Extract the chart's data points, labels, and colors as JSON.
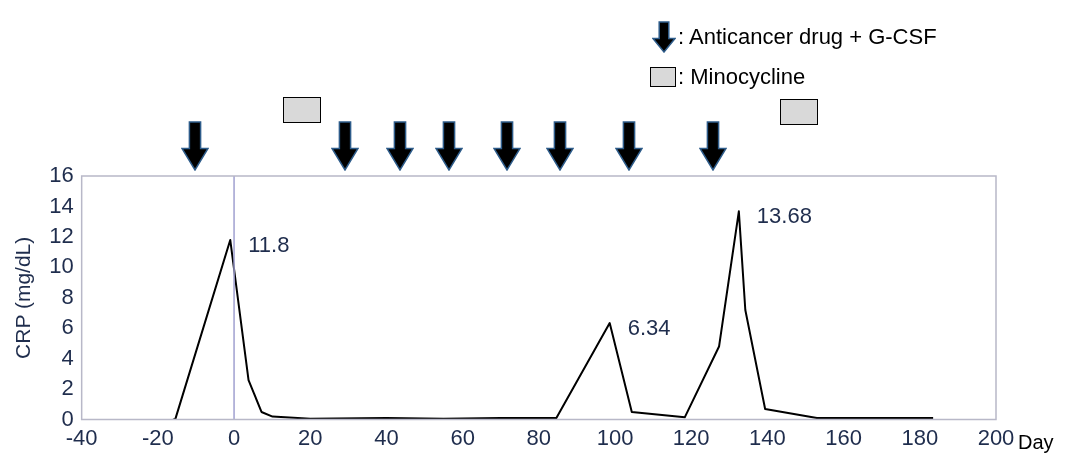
{
  "chart_data": {
    "type": "line",
    "ylabel": "CRP (mg/dL)",
    "xlabel": "Day",
    "x": [
      -16,
      -15.4,
      -1,
      3.8,
      7.2,
      10.1,
      20,
      40,
      55,
      70,
      84.6,
      98.6,
      104.4,
      118.3,
      127.3,
      132.5,
      134.2,
      139.4,
      153,
      183.5
    ],
    "series": [
      {
        "color": "#000000",
        "values": [
          0,
          0.05,
          11.8,
          2.6,
          0.5,
          0.2,
          0.05,
          0.1,
          0.05,
          0.1,
          0.1,
          6.34,
          0.5,
          0.15,
          4.8,
          13.68,
          7.2,
          0.7,
          0.1,
          0.1
        ]
      }
    ],
    "xlim": [
      -40,
      200
    ],
    "xticks": [
      -40,
      -20,
      0,
      20,
      40,
      60,
      80,
      100,
      120,
      140,
      160,
      180,
      200
    ],
    "ylim": [
      0,
      16
    ],
    "yticks": [
      0,
      2,
      4,
      6,
      8,
      10,
      12,
      14,
      16
    ],
    "grid": false,
    "legend": false,
    "marker": "none",
    "line_style": "solid",
    "ref_lines": [
      {
        "axis": "x",
        "value": 0,
        "color": "#a0a0d0"
      }
    ],
    "annotations": [
      ": Anticancer drug + G-CSF",
      ": Minocycline",
      {
        "text": "11.8",
        "x": -1,
        "y": 11.8
      },
      {
        "text": "6.34",
        "x": 98.6,
        "y": 6.34
      },
      {
        "text": "13.68",
        "x": 132.5,
        "y": 13.68
      }
    ]
  }
}
